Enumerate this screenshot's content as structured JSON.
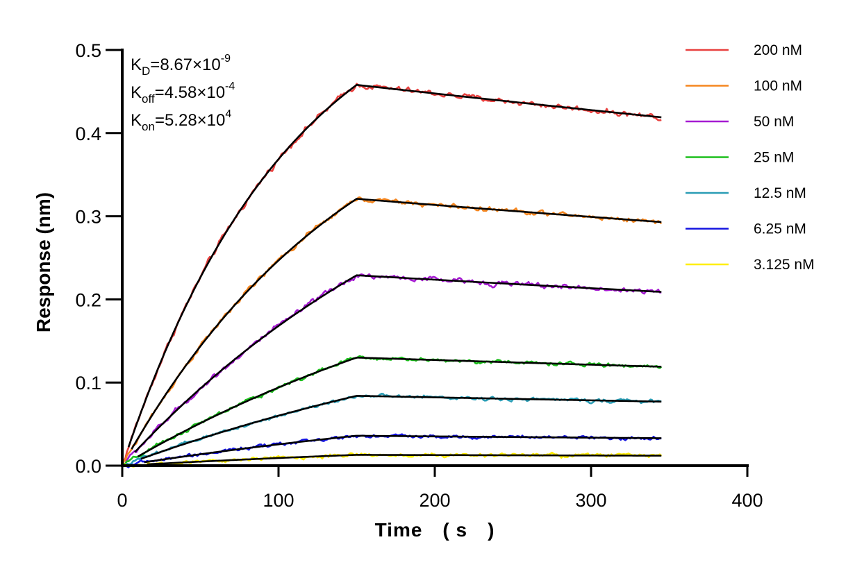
{
  "chart_data": {
    "type": "line",
    "title": "",
    "xlabel": "Time　( s　)",
    "ylabel": "Response (nm)",
    "xlim": [
      0,
      400
    ],
    "ylim": [
      0,
      0.5
    ],
    "x_ticks": [
      "0",
      "100",
      "200",
      "300",
      "400"
    ],
    "y_ticks": [
      "0.0",
      "0.1",
      "0.2",
      "0.3",
      "0.4",
      "0.5"
    ],
    "grid": false,
    "legend_position": "right",
    "association_end": 150,
    "time_end": 345,
    "kinetics": {
      "kd": {
        "base": "K",
        "sub": "D",
        "value": "=8.67×10",
        "exp": "-9"
      },
      "koff": {
        "base": "K",
        "sub": "off",
        "value": "=4.58×10",
        "exp": "-4"
      },
      "kon": {
        "base": "K",
        "sub": "on",
        "value": "=5.28×10",
        "exp": "4"
      }
    },
    "fit_color": "#000000",
    "series": [
      {
        "name": "200 nM",
        "color": "#e8413f",
        "plateau": 0.458,
        "end_value": 0.419,
        "curve_k": 0.0093,
        "noise": 0.0032
      },
      {
        "name": "100 nM",
        "color": "#f5861f",
        "plateau": 0.321,
        "end_value": 0.293,
        "curve_k": 0.0066,
        "noise": 0.0028
      },
      {
        "name": "50 nM",
        "color": "#a51bd1",
        "plateau": 0.229,
        "end_value": 0.209,
        "curve_k": 0.0042,
        "noise": 0.003
      },
      {
        "name": "25 nM",
        "color": "#1dbf1d",
        "plateau": 0.13,
        "end_value": 0.119,
        "curve_k": 0.0035,
        "noise": 0.0022
      },
      {
        "name": "12.5 nM",
        "color": "#2a9db5",
        "plateau": 0.084,
        "end_value": 0.077,
        "curve_k": 0.003,
        "noise": 0.002
      },
      {
        "name": "6.25 nM",
        "color": "#1414e0",
        "plateau": 0.036,
        "end_value": 0.033,
        "curve_k": 0.0028,
        "noise": 0.002
      },
      {
        "name": "3.125 nM",
        "color": "#ffee00",
        "plateau": 0.013,
        "end_value": 0.012,
        "curve_k": 0.0025,
        "noise": 0.0022
      }
    ]
  }
}
